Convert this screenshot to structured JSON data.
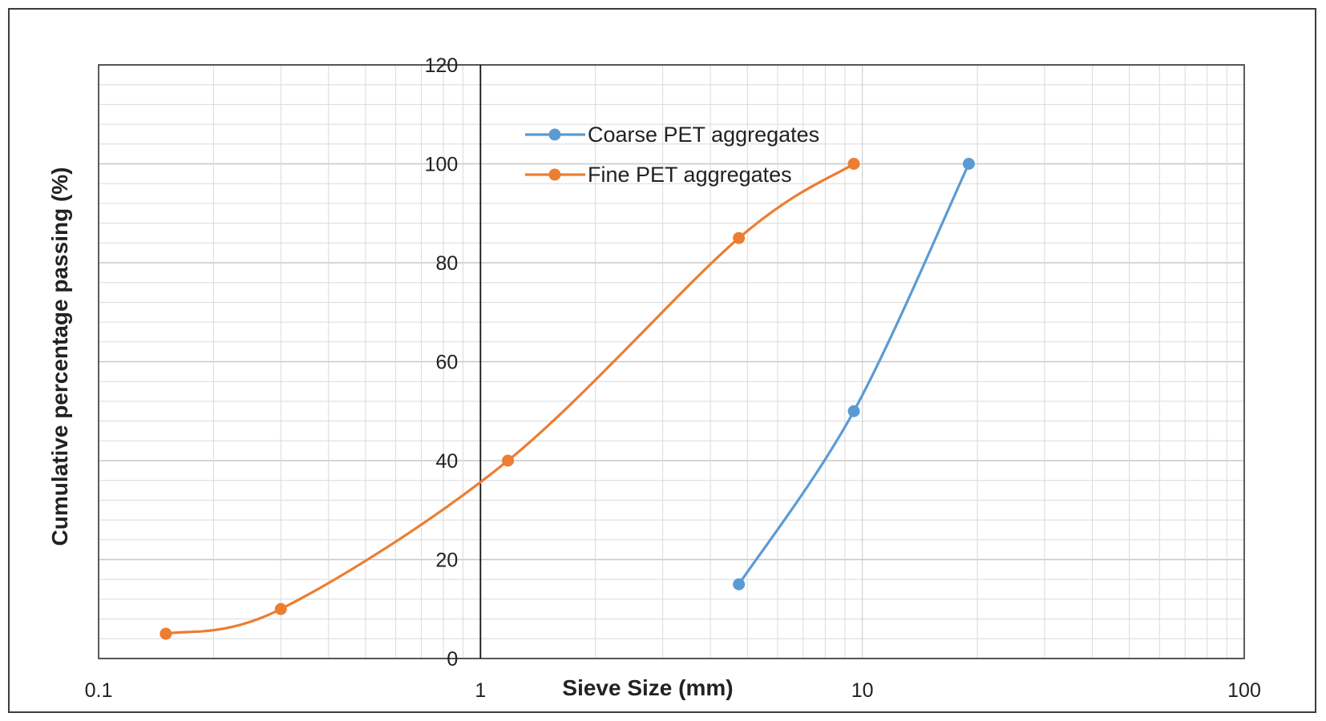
{
  "chart_data": {
    "type": "line",
    "xlabel": "Sieve Size (mm)",
    "ylabel": "Cumulative percentage passing (%)",
    "x_scale": "log",
    "xlim": [
      0.1,
      100
    ],
    "ylim": [
      0,
      120
    ],
    "x_ticks": [
      "0.1",
      "1",
      "10",
      "100"
    ],
    "y_ticks": [
      "0",
      "20",
      "40",
      "60",
      "80",
      "100",
      "120"
    ],
    "grid": true,
    "legend_position": "top-center",
    "series": [
      {
        "name": "Coarse PET aggregates",
        "color": "#5b9bd5",
        "x": [
          4.75,
          9.5,
          19
        ],
        "y": [
          15,
          50,
          100
        ]
      },
      {
        "name": "Fine PET aggregates",
        "color": "#ed7d31",
        "x": [
          0.15,
          0.3,
          1.18,
          4.75,
          9.5
        ],
        "y": [
          5,
          10,
          40,
          85,
          100
        ]
      }
    ]
  }
}
